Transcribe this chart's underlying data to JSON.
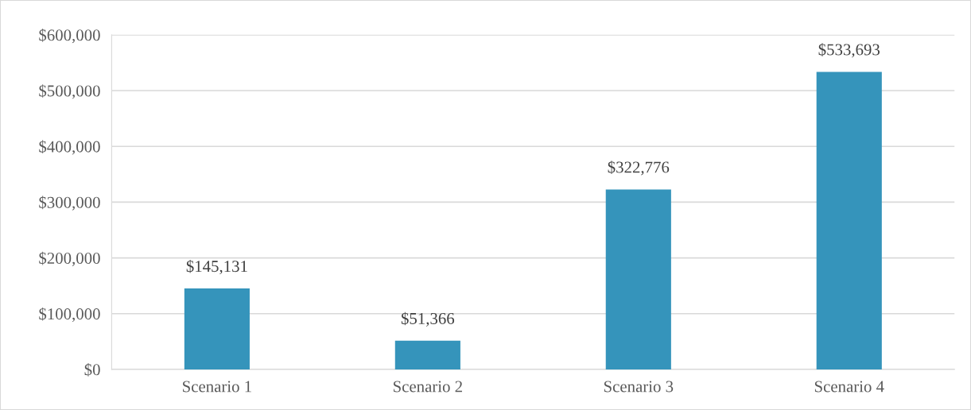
{
  "chart_data": {
    "type": "bar",
    "categories": [
      "Scenario 1",
      "Scenario 2",
      "Scenario 3",
      "Scenario 4"
    ],
    "values": [
      145131,
      51366,
      322776,
      533693
    ],
    "value_labels": [
      "$145,131",
      "$51,366",
      "$322,776",
      "$533,693"
    ],
    "color": "#3594bb",
    "ylim": [
      0,
      600000
    ],
    "yticks": [
      {
        "value": 0,
        "label": "$0"
      },
      {
        "value": 100000,
        "label": "$100,000"
      },
      {
        "value": 200000,
        "label": "$200,000"
      },
      {
        "value": 300000,
        "label": "$300,000"
      },
      {
        "value": 400000,
        "label": "$400,000"
      },
      {
        "value": 500000,
        "label": "$500,000"
      },
      {
        "value": 600000,
        "label": "$600,000"
      }
    ],
    "grid": "y",
    "legend": false
  }
}
